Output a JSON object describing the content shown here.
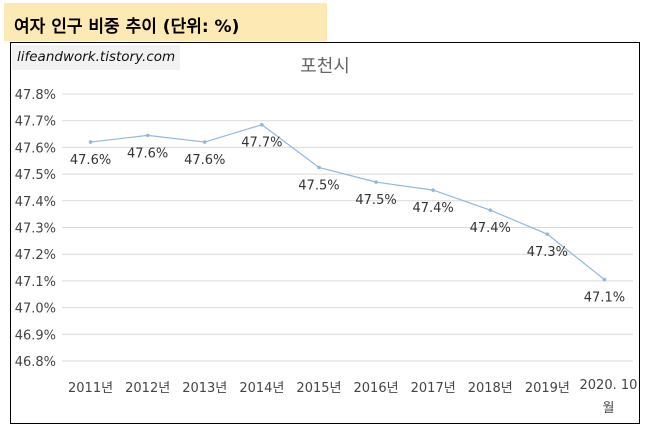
{
  "header": {
    "title": "여자 인구 비중 추이 (단위: %)"
  },
  "watermark": "lifeandwork.tistory.com",
  "colors": {
    "banner": "#fde9b4",
    "line": "#8fb8de",
    "grid": "#d9d9d9"
  },
  "chart_data": {
    "type": "line",
    "title": "포천시",
    "xlabel": "",
    "ylabel": "",
    "ylim": [
      46.8,
      47.8
    ],
    "yticks": [
      47.8,
      47.7,
      47.6,
      47.5,
      47.4,
      47.3,
      47.2,
      47.1,
      47.0,
      46.9,
      46.8
    ],
    "ytick_labels": [
      "47.8%",
      "47.7%",
      "47.6%",
      "47.5%",
      "47.4%",
      "47.3%",
      "47.2%",
      "47.1%",
      "47.0%",
      "46.9%",
      "46.8%"
    ],
    "grid": true,
    "categories": [
      "2011년",
      "2012년",
      "2013년",
      "2014년",
      "2015년",
      "2016년",
      "2017년",
      "2018년",
      "2019년",
      "2020. 10 월"
    ],
    "series": [
      {
        "name": "포천시",
        "values": [
          47.62,
          47.645,
          47.62,
          47.685,
          47.525,
          47.47,
          47.44,
          47.365,
          47.275,
          47.105
        ],
        "data_labels": [
          "47.6%",
          "47.6%",
          "47.6%",
          "47.7%",
          "47.5%",
          "47.5%",
          "47.4%",
          "47.4%",
          "47.3%",
          "47.1%"
        ]
      }
    ]
  }
}
